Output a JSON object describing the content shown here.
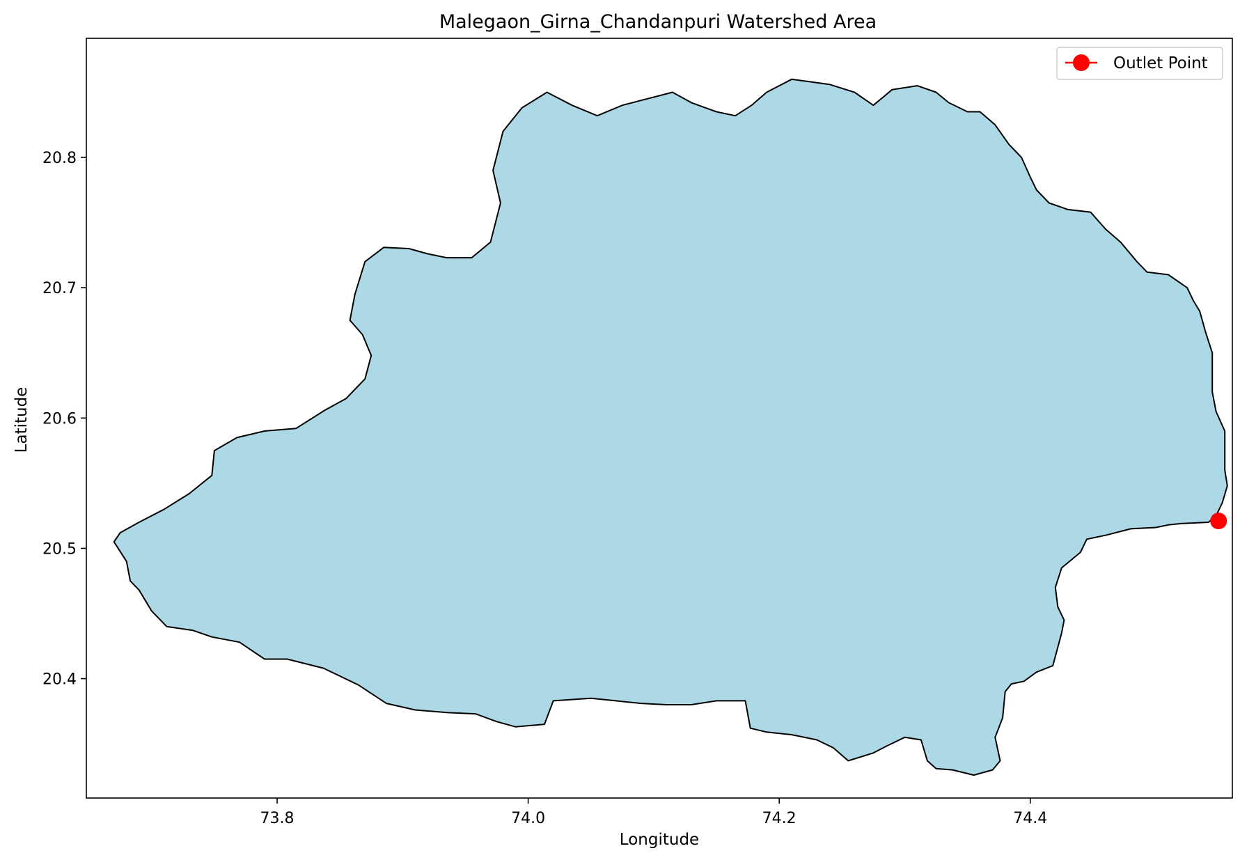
{
  "chart_data": {
    "type": "map",
    "title": "Malegaon_Girna_Chandanpuri Watershed Area",
    "xlabel": "Longitude",
    "ylabel": "Latitude",
    "xlim": [
      73.648,
      74.561
    ],
    "ylim": [
      20.3084,
      20.8914
    ],
    "xticks": [
      73.8,
      74.0,
      74.2,
      74.4
    ],
    "yticks": [
      20.4,
      20.5,
      20.6,
      20.7,
      20.8
    ],
    "xtick_labels": [
      "73.8",
      "74.0",
      "74.2",
      "74.4"
    ],
    "ytick_labels": [
      "20.4",
      "20.5",
      "20.6",
      "20.7",
      "20.8"
    ],
    "grid": false,
    "legend_position": "top-right",
    "watershed": {
      "fill": "#add8e6",
      "edge": "#000000",
      "boundary": [
        [
          74.542,
          20.52
        ],
        [
          74.52,
          20.519
        ],
        [
          74.51,
          20.518
        ],
        [
          74.5,
          20.516
        ],
        [
          74.48,
          20.515
        ],
        [
          74.46,
          20.51
        ],
        [
          74.445,
          20.507
        ],
        [
          74.44,
          20.497
        ],
        [
          74.425,
          20.485
        ],
        [
          74.42,
          20.47
        ],
        [
          74.422,
          20.455
        ],
        [
          74.427,
          20.445
        ],
        [
          74.425,
          20.435
        ],
        [
          74.418,
          20.41
        ],
        [
          74.405,
          20.405
        ],
        [
          74.395,
          20.398
        ],
        [
          74.385,
          20.396
        ],
        [
          74.38,
          20.39
        ],
        [
          74.378,
          20.37
        ],
        [
          74.372,
          20.355
        ],
        [
          74.376,
          20.337
        ],
        [
          74.37,
          20.33
        ],
        [
          74.355,
          20.326
        ],
        [
          74.338,
          20.33
        ],
        [
          74.325,
          20.331
        ],
        [
          74.318,
          20.337
        ],
        [
          74.313,
          20.353
        ],
        [
          74.3,
          20.355
        ],
        [
          74.285,
          20.348
        ],
        [
          74.275,
          20.343
        ],
        [
          74.255,
          20.337
        ],
        [
          74.243,
          20.347
        ],
        [
          74.23,
          20.353
        ],
        [
          74.21,
          20.357
        ],
        [
          74.19,
          20.359
        ],
        [
          74.177,
          20.362
        ],
        [
          74.173,
          20.383
        ],
        [
          74.15,
          20.383
        ],
        [
          74.13,
          20.38
        ],
        [
          74.11,
          20.38
        ],
        [
          74.09,
          20.381
        ],
        [
          74.07,
          20.383
        ],
        [
          74.05,
          20.385
        ],
        [
          74.02,
          20.383
        ],
        [
          74.013,
          20.365
        ],
        [
          73.99,
          20.363
        ],
        [
          73.975,
          20.367
        ],
        [
          73.958,
          20.373
        ],
        [
          73.935,
          20.374
        ],
        [
          73.91,
          20.376
        ],
        [
          73.887,
          20.381
        ],
        [
          73.865,
          20.395
        ],
        [
          73.837,
          20.408
        ],
        [
          73.808,
          20.415
        ],
        [
          73.79,
          20.415
        ],
        [
          73.77,
          20.428
        ],
        [
          73.748,
          20.432
        ],
        [
          73.733,
          20.437
        ],
        [
          73.712,
          20.44
        ],
        [
          73.7,
          20.452
        ],
        [
          73.69,
          20.468
        ],
        [
          73.683,
          20.475
        ],
        [
          73.68,
          20.49
        ],
        [
          73.67,
          20.505
        ],
        [
          73.675,
          20.512
        ],
        [
          73.69,
          20.52
        ],
        [
          73.71,
          20.53
        ],
        [
          73.73,
          20.542
        ],
        [
          73.748,
          20.556
        ],
        [
          73.75,
          20.575
        ],
        [
          73.768,
          20.585
        ],
        [
          73.79,
          20.59
        ],
        [
          73.815,
          20.592
        ],
        [
          73.838,
          20.606
        ],
        [
          73.855,
          20.615
        ],
        [
          73.87,
          20.63
        ],
        [
          73.875,
          20.648
        ],
        [
          73.868,
          20.664
        ],
        [
          73.858,
          20.675
        ],
        [
          73.862,
          20.695
        ],
        [
          73.87,
          20.72
        ],
        [
          73.885,
          20.731
        ],
        [
          73.905,
          20.73
        ],
        [
          73.92,
          20.726
        ],
        [
          73.935,
          20.723
        ],
        [
          73.955,
          20.723
        ],
        [
          73.97,
          20.735
        ],
        [
          73.978,
          20.765
        ],
        [
          73.972,
          20.79
        ],
        [
          73.98,
          20.82
        ],
        [
          73.995,
          20.838
        ],
        [
          74.015,
          20.85
        ],
        [
          74.035,
          20.84
        ],
        [
          74.055,
          20.832
        ],
        [
          74.075,
          20.84
        ],
        [
          74.095,
          20.845
        ],
        [
          74.115,
          20.85
        ],
        [
          74.13,
          20.842
        ],
        [
          74.15,
          20.835
        ],
        [
          74.165,
          20.832
        ],
        [
          74.178,
          20.84
        ],
        [
          74.19,
          20.85
        ],
        [
          74.21,
          20.86
        ],
        [
          74.225,
          20.858
        ],
        [
          74.24,
          20.856
        ],
        [
          74.26,
          20.85
        ],
        [
          74.275,
          20.84
        ],
        [
          74.29,
          20.852
        ],
        [
          74.31,
          20.855
        ],
        [
          74.325,
          20.85
        ],
        [
          74.335,
          20.842
        ],
        [
          74.35,
          20.835
        ],
        [
          74.36,
          20.835
        ],
        [
          74.372,
          20.825
        ],
        [
          74.383,
          20.81
        ],
        [
          74.393,
          20.8
        ],
        [
          74.4,
          20.785
        ],
        [
          74.405,
          20.775
        ],
        [
          74.415,
          20.765
        ],
        [
          74.43,
          20.76
        ],
        [
          74.448,
          20.758
        ],
        [
          74.46,
          20.745
        ],
        [
          74.472,
          20.735
        ],
        [
          74.485,
          20.72
        ],
        [
          74.493,
          20.712
        ],
        [
          74.51,
          20.71
        ],
        [
          74.525,
          20.7
        ],
        [
          74.53,
          20.69
        ],
        [
          74.535,
          20.682
        ],
        [
          74.54,
          20.665
        ],
        [
          74.545,
          20.65
        ],
        [
          74.545,
          20.64
        ],
        [
          74.545,
          20.62
        ],
        [
          74.548,
          20.605
        ],
        [
          74.555,
          20.59
        ],
        [
          74.555,
          20.575
        ],
        [
          74.555,
          20.56
        ],
        [
          74.557,
          20.548
        ],
        [
          74.553,
          20.535
        ],
        [
          74.548,
          20.525
        ]
      ]
    },
    "outlet_point": {
      "x": 74.55,
      "y": 20.521,
      "label": "Outlet Point",
      "color": "#ff0000"
    }
  }
}
